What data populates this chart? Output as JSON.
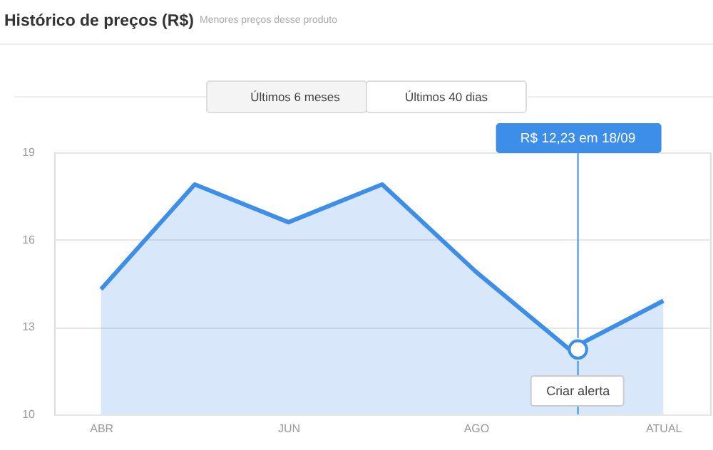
{
  "chart_data": {
    "type": "area",
    "title": "Histórico de preços (R$)",
    "subtitle": "Menores preços desse produto",
    "categories": [
      "ABR",
      null,
      "JUN",
      null,
      "AGO",
      null,
      "ATUAL"
    ],
    "series": [
      {
        "color": "#3d8ee8",
        "values": [
          14.3,
          17.9,
          16.6,
          17.9,
          14.9,
          12.23,
          13.9
        ]
      }
    ],
    "ylim": [
      10,
      19
    ],
    "yticks": [
      10,
      13,
      16,
      19
    ],
    "grid": "y",
    "legend": false,
    "annotations": [
      "Últimos 6 meses",
      "Últimos 40 dias",
      {
        "text": "R$ 12,23 em 18/09",
        "y": 12.23
      },
      "Criar alerta"
    ]
  }
}
